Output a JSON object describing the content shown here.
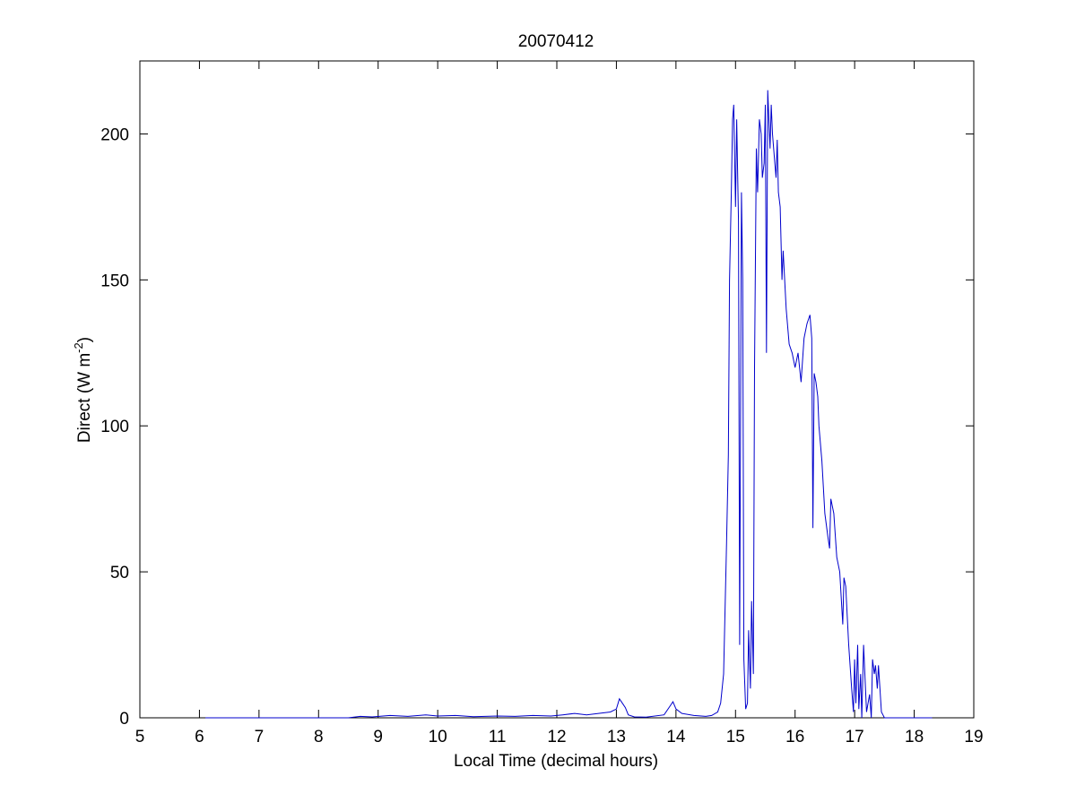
{
  "chart_data": {
    "type": "line",
    "title": "20070412",
    "xlabel": "Local Time (decimal hours)",
    "ylabel_main": "Direct (W m",
    "ylabel_sup": "-2",
    "ylabel_tail": ")",
    "xlim": [
      5,
      19
    ],
    "ylim": [
      0,
      225
    ],
    "xticks": [
      5,
      6,
      7,
      8,
      9,
      10,
      11,
      12,
      13,
      14,
      15,
      16,
      17,
      18,
      19
    ],
    "yticks": [
      0,
      50,
      100,
      150,
      200
    ],
    "grid": false,
    "line_color": "#0000cc",
    "series": [
      {
        "x": [
          6.1,
          8.5,
          8.7,
          8.9,
          9.2,
          9.5,
          9.8,
          10.0,
          10.3,
          10.6,
          11.0,
          11.3,
          11.6,
          11.9,
          12.1,
          12.3,
          12.5,
          12.7,
          12.9,
          13.0,
          13.05,
          13.1,
          13.15,
          13.2,
          13.3,
          13.5,
          13.8,
          13.9,
          13.95,
          14.0,
          14.1,
          14.3,
          14.5,
          14.6,
          14.7,
          14.75,
          14.8,
          14.85,
          14.88,
          14.9,
          14.93,
          14.95,
          14.97,
          15.0,
          15.02,
          15.05,
          15.07,
          15.1,
          15.12,
          15.14,
          15.17,
          15.2,
          15.22,
          15.25,
          15.27,
          15.3,
          15.32,
          15.35,
          15.37,
          15.4,
          15.43,
          15.45,
          15.48,
          15.5,
          15.52,
          15.54,
          15.56,
          15.58,
          15.6,
          15.62,
          15.64,
          15.66,
          15.68,
          15.7,
          15.72,
          15.75,
          15.78,
          15.8,
          15.85,
          15.9,
          15.95,
          16.0,
          16.05,
          16.1,
          16.15,
          16.2,
          16.25,
          16.28,
          16.3,
          16.32,
          16.35,
          16.38,
          16.4,
          16.45,
          16.5,
          16.55,
          16.58,
          16.6,
          16.65,
          16.7,
          16.75,
          16.8,
          16.82,
          16.85,
          16.9,
          16.95,
          16.98,
          17.0,
          17.02,
          17.05,
          17.07,
          17.1,
          17.12,
          17.15,
          17.2,
          17.25,
          17.28,
          17.3,
          17.33,
          17.35,
          17.38,
          17.4,
          17.45,
          17.5,
          18.0,
          18.3
        ],
        "y": [
          0,
          0,
          0.5,
          0.3,
          0.8,
          0.5,
          1.0,
          0.6,
          0.8,
          0.4,
          0.6,
          0.5,
          0.8,
          0.6,
          1.0,
          1.5,
          1.0,
          1.5,
          2.0,
          3.0,
          6.5,
          5.0,
          3.5,
          1.0,
          0.3,
          0.2,
          1.0,
          4.0,
          5.5,
          3.0,
          1.5,
          0.8,
          0.5,
          0.8,
          2.0,
          5.0,
          15.0,
          60.0,
          90.0,
          150.0,
          180.0,
          205.0,
          210.0,
          175.0,
          205.0,
          170.0,
          25.0,
          180.0,
          150.0,
          20.0,
          3.0,
          5.0,
          30.0,
          10.0,
          40.0,
          15.0,
          120.0,
          195.0,
          180.0,
          205.0,
          200.0,
          185.0,
          190.0,
          210.0,
          125.0,
          215.0,
          205.0,
          195.0,
          210.0,
          200.0,
          195.0,
          190.0,
          185.0,
          198.0,
          180.0,
          175.0,
          150.0,
          160.0,
          140.0,
          128.0,
          125.0,
          120.0,
          125.0,
          115.0,
          130.0,
          135.0,
          138.0,
          130.0,
          65.0,
          118.0,
          115.0,
          110.0,
          100.0,
          88.0,
          70.0,
          62.0,
          58.0,
          75.0,
          70.0,
          55.0,
          50.0,
          32.0,
          48.0,
          45.0,
          25.0,
          10.0,
          2.0,
          20.0,
          5.0,
          25.0,
          3.0,
          15.0,
          0.0,
          25.0,
          2.0,
          8.0,
          0.0,
          20.0,
          15.0,
          18.0,
          10.0,
          18.0,
          2.0,
          0.0,
          0.0,
          0.0
        ]
      }
    ]
  }
}
